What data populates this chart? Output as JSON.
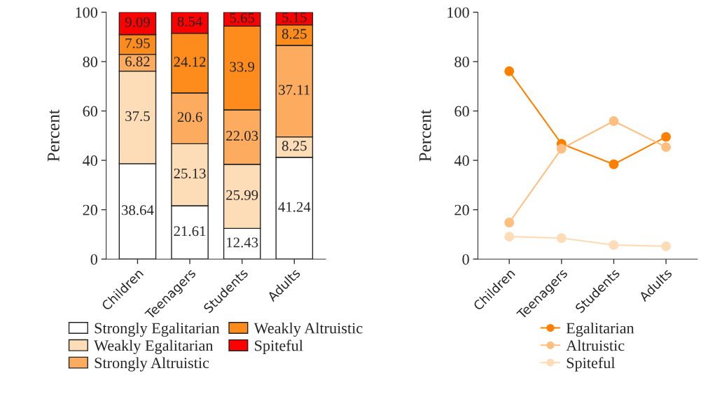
{
  "chart_data": [
    {
      "type": "bar",
      "stacked": true,
      "categories": [
        "Children",
        "Teenagers",
        "Students",
        "Adults"
      ],
      "ylabel": "Percent",
      "ylim": [
        0,
        100
      ],
      "yticks": [
        0,
        20,
        40,
        60,
        80,
        100
      ],
      "data_labels": true,
      "legend": "bottom",
      "grid": false,
      "series": [
        {
          "name": "Strongly Egalitarian",
          "color": "#ffffff",
          "values": [
            38.64,
            21.61,
            12.43,
            41.24
          ]
        },
        {
          "name": "Weakly Egalitarian",
          "color": "#fddcb8",
          "values": [
            37.5,
            25.13,
            25.99,
            8.25
          ]
        },
        {
          "name": "Strongly Altruistic",
          "color": "#fdab5f",
          "values": [
            6.82,
            20.6,
            22.03,
            37.11
          ]
        },
        {
          "name": "Weakly Altruistic",
          "color": "#fd8c1c",
          "values": [
            7.95,
            24.12,
            33.9,
            8.25
          ]
        },
        {
          "name": "Spiteful",
          "color": "#ff0000",
          "values": [
            9.09,
            8.54,
            5.65,
            5.15
          ]
        }
      ]
    },
    {
      "type": "line",
      "categories": [
        "Children",
        "Teenagers",
        "Students",
        "Adults"
      ],
      "ylabel": "Percent",
      "ylim": [
        0,
        100
      ],
      "yticks": [
        0,
        20,
        40,
        60,
        80,
        100
      ],
      "marker": "circle",
      "legend": "bottom",
      "grid": false,
      "series": [
        {
          "name": "Egalitarian",
          "color": "#ff8000",
          "values": [
            76.1,
            46.7,
            38.4,
            49.5
          ]
        },
        {
          "name": "Altruistic",
          "color": "#ffbf80",
          "values": [
            14.8,
            44.7,
            55.9,
            45.4
          ]
        },
        {
          "name": "Spiteful",
          "color": "#ffdcb8",
          "values": [
            9.1,
            8.5,
            5.7,
            5.2
          ]
        }
      ]
    }
  ]
}
